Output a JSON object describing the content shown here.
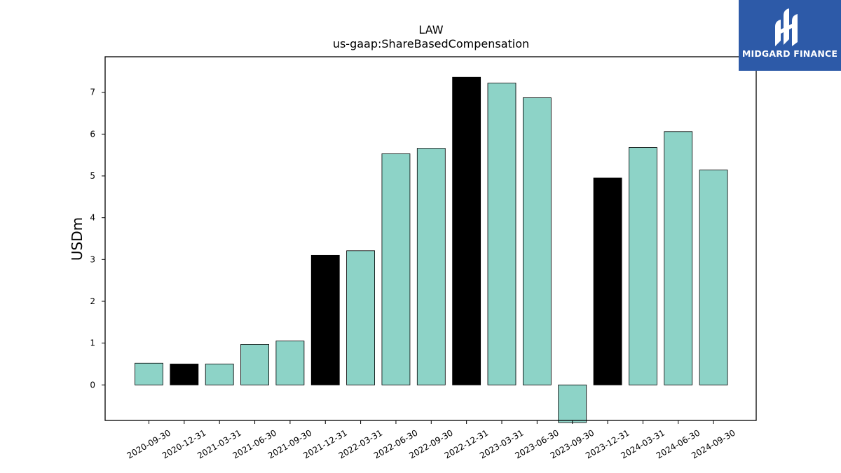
{
  "brand": {
    "name": "MIDGARD FINANCE",
    "bg_color": "#2d5aa8"
  },
  "chart_data": {
    "type": "bar",
    "title": "LAW",
    "subtitle": "us-gaap:ShareBasedCompensation",
    "xlabel": "",
    "ylabel": "USDm",
    "categories": [
      "2020-09-30",
      "2020-12-31",
      "2021-03-31",
      "2021-06-30",
      "2021-09-30",
      "2021-12-31",
      "2022-03-31",
      "2022-06-30",
      "2022-09-30",
      "2022-12-31",
      "2023-03-31",
      "2023-06-30",
      "2023-09-30",
      "2023-12-31",
      "2024-03-31",
      "2024-06-30",
      "2024-09-30"
    ],
    "values": [
      0.52,
      0.5,
      0.5,
      0.97,
      1.05,
      3.1,
      3.21,
      5.53,
      5.66,
      7.36,
      7.22,
      6.87,
      -0.9,
      4.95,
      5.68,
      6.06,
      5.14
    ],
    "is_fiscal_q4": [
      false,
      true,
      false,
      false,
      false,
      true,
      false,
      false,
      false,
      true,
      false,
      false,
      false,
      true,
      false,
      false,
      false
    ],
    "colors": {
      "regular": "#8dd3c7",
      "q4": "#000000"
    },
    "ylim": [
      -0.85,
      7.85
    ],
    "yticks": [
      0,
      1,
      2,
      3,
      4,
      5,
      6,
      7
    ],
    "grid": false,
    "legend": "none"
  }
}
